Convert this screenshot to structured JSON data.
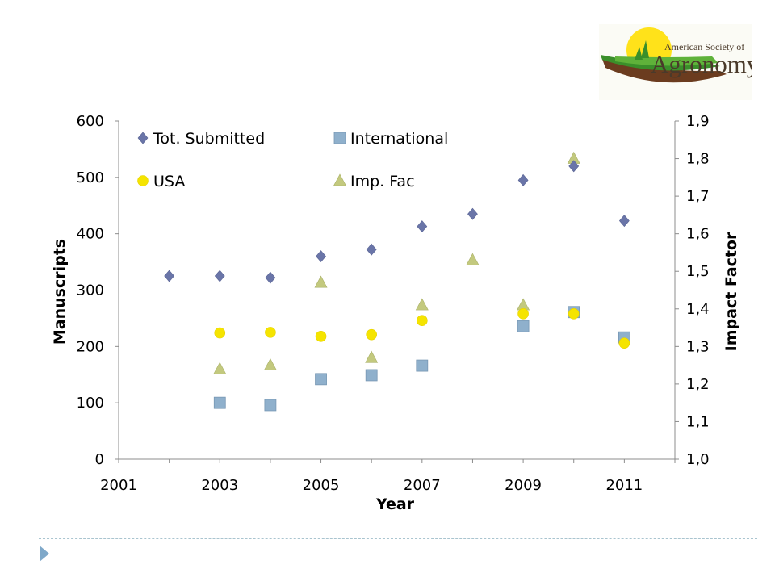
{
  "logo": {
    "line1": "American Society of",
    "line2": "Agronomy"
  },
  "chart_data": {
    "type": "scatter",
    "title": "",
    "xlabel": "Year",
    "ylabel_left": "Manuscripts",
    "ylabel_right": "Impact Factor",
    "xlim": [
      2001,
      2012
    ],
    "ylim_left": [
      0,
      600
    ],
    "ylim_right": [
      1.0,
      1.9
    ],
    "x_ticks": [
      "2001",
      "2003",
      "2005",
      "2007",
      "2009",
      "2011"
    ],
    "y_left_ticks": [
      "0",
      "100",
      "200",
      "300",
      "400",
      "500",
      "600"
    ],
    "y_right_ticks": [
      "1,0",
      "1,1",
      "1,2",
      "1,3",
      "1,4",
      "1,5",
      "1,6",
      "1,7",
      "1,8",
      "1,9"
    ],
    "grid": false,
    "legend_position": "top-left",
    "series": [
      {
        "name": "Tot. Submitted",
        "marker": "diamond",
        "color": "#6a75a8",
        "axis": "left",
        "x": [
          2002,
          2003,
          2004,
          2005,
          2006,
          2007,
          2008,
          2009,
          2010,
          2011
        ],
        "values": [
          325,
          325,
          322,
          360,
          372,
          413,
          435,
          495,
          520,
          423
        ]
      },
      {
        "name": "International",
        "marker": "square",
        "color": "#8fb0cc",
        "axis": "left",
        "x": [
          2003,
          2004,
          2005,
          2006,
          2007,
          2009,
          2010,
          2011
        ],
        "values": [
          100,
          96,
          142,
          149,
          166,
          236,
          261,
          216
        ]
      },
      {
        "name": "USA",
        "marker": "circle",
        "color": "#f5e400",
        "axis": "left",
        "x": [
          2003,
          2004,
          2005,
          2006,
          2007,
          2009,
          2010,
          2011
        ],
        "values": [
          224,
          225,
          218,
          221,
          246,
          258,
          258,
          206
        ]
      },
      {
        "name": "Imp. Fac",
        "marker": "triangle",
        "color": "#c3c97e",
        "axis": "right",
        "x": [
          2003,
          2004,
          2005,
          2006,
          2007,
          2008,
          2009,
          2010
        ],
        "values": [
          1.24,
          1.25,
          1.47,
          1.27,
          1.41,
          1.53,
          1.41,
          1.8
        ]
      }
    ]
  }
}
